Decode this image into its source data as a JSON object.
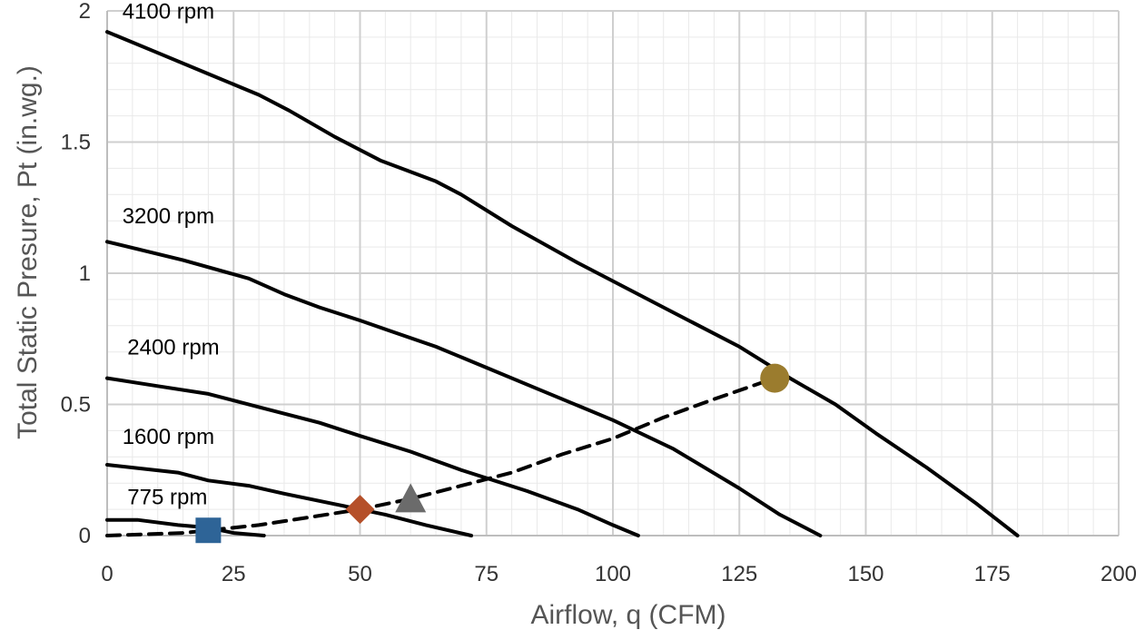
{
  "chart_data": {
    "type": "line",
    "title": "",
    "xlabel": "Airflow, q (CFM)",
    "ylabel": "Total Static Presure, Pt (in.wg.)",
    "xlim": [
      0,
      200
    ],
    "ylim": [
      0,
      2
    ],
    "xticks": [
      0,
      25,
      50,
      75,
      100,
      125,
      150,
      175,
      200
    ],
    "yticks": [
      0,
      0.5,
      1,
      1.5,
      2
    ],
    "ytick_labels": [
      "0",
      "0.5",
      "1",
      "1.5",
      "2"
    ],
    "grid": true,
    "legend": "none",
    "series": [
      {
        "name": "4100 rpm",
        "color": "#000000",
        "style": "solid",
        "x": [
          0,
          10,
          20,
          30,
          36,
          45,
          54,
          65,
          70,
          80,
          93,
          110,
          125,
          135,
          144,
          152,
          162,
          172,
          180
        ],
        "y": [
          1.92,
          1.84,
          1.76,
          1.68,
          1.62,
          1.52,
          1.43,
          1.35,
          1.3,
          1.18,
          1.04,
          0.87,
          0.72,
          0.6,
          0.5,
          0.39,
          0.26,
          0.12,
          0.0
        ]
      },
      {
        "name": "3200 rpm",
        "color": "#000000",
        "style": "solid",
        "x": [
          0,
          15,
          28,
          35,
          42,
          50,
          56,
          65,
          75,
          85,
          100,
          112,
          125,
          133,
          141
        ],
        "y": [
          1.12,
          1.05,
          0.98,
          0.92,
          0.87,
          0.82,
          0.78,
          0.72,
          0.64,
          0.56,
          0.44,
          0.33,
          0.18,
          0.08,
          0.0
        ]
      },
      {
        "name": "2400 rpm",
        "color": "#000000",
        "style": "solid",
        "x": [
          0,
          10,
          20,
          30,
          42,
          50,
          60,
          70,
          83,
          93,
          100,
          105
        ],
        "y": [
          0.6,
          0.57,
          0.54,
          0.49,
          0.43,
          0.38,
          0.32,
          0.25,
          0.17,
          0.1,
          0.04,
          0.0
        ]
      },
      {
        "name": "1600 rpm",
        "color": "#000000",
        "style": "solid",
        "x": [
          0,
          14,
          20,
          28,
          35,
          45,
          55,
          63,
          72
        ],
        "y": [
          0.27,
          0.24,
          0.21,
          0.19,
          0.16,
          0.12,
          0.08,
          0.04,
          0.0
        ]
      },
      {
        "name": "775 rpm",
        "color": "#000000",
        "style": "solid",
        "x": [
          0,
          6,
          14,
          20,
          25,
          31
        ],
        "y": [
          0.06,
          0.06,
          0.04,
          0.03,
          0.01,
          0.0
        ]
      },
      {
        "name": "",
        "color": "#000000",
        "style": "dashed",
        "x": [
          0,
          15,
          20,
          30,
          40,
          50,
          60,
          70,
          80,
          90,
          100,
          110,
          120,
          132
        ],
        "y": [
          0.0,
          0.01,
          0.02,
          0.04,
          0.07,
          0.1,
          0.14,
          0.19,
          0.24,
          0.31,
          0.37,
          0.45,
          0.52,
          0.6
        ]
      }
    ],
    "markers": [
      {
        "shape": "square",
        "x": 20,
        "y": 0.02,
        "color": "#2E6497"
      },
      {
        "shape": "diamond",
        "x": 50,
        "y": 0.1,
        "color": "#B5502A"
      },
      {
        "shape": "triangle",
        "x": 60,
        "y": 0.13,
        "color": "#6B6B6B"
      },
      {
        "shape": "circle",
        "x": 132,
        "y": 0.6,
        "color": "#9B7C2E"
      }
    ],
    "curve_labels": [
      {
        "text": "4100 rpm",
        "x": 3,
        "y": 1.97
      },
      {
        "text": "3200 rpm",
        "x": 3,
        "y": 1.19
      },
      {
        "text": "2400 rpm",
        "x": 4,
        "y": 0.69
      },
      {
        "text": "1600 rpm",
        "x": 3,
        "y": 0.35
      },
      {
        "text": "775 rpm",
        "x": 4,
        "y": 0.12
      }
    ]
  }
}
